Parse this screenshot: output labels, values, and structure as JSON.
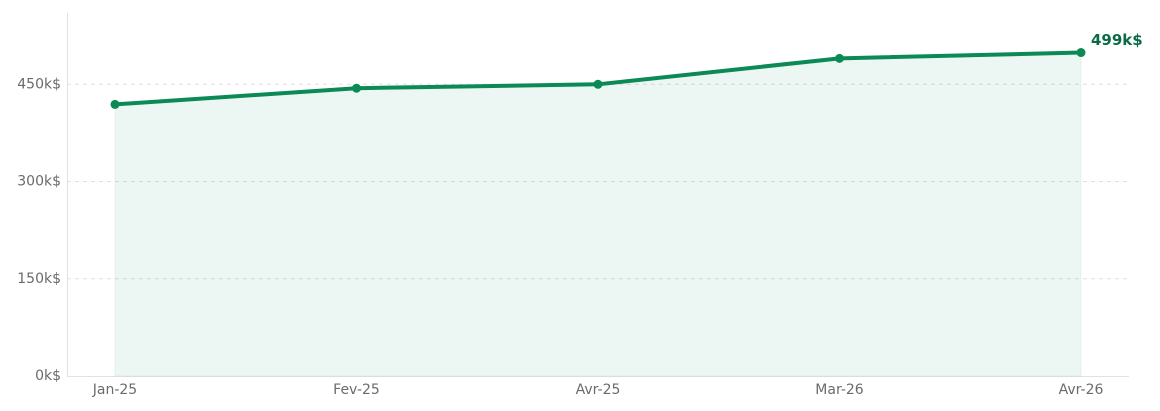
{
  "chart_data": {
    "type": "line",
    "categories": [
      "Jan-25",
      "Fev-25",
      "Avr-25",
      "Mar-26",
      "Avr-26"
    ],
    "values": [
      419,
      444,
      450,
      490,
      499
    ],
    "value_labels": [
      null,
      null,
      null,
      null,
      "499k$"
    ],
    "color": "#0b8a55",
    "area": true,
    "ylim": [
      0,
      560
    ],
    "yticks": [
      {
        "value": 0,
        "label": "0k$"
      },
      {
        "value": 150,
        "label": "150k$"
      },
      {
        "value": 300,
        "label": "300k$"
      },
      {
        "value": 450,
        "label": "450k$"
      }
    ],
    "grid": true
  }
}
